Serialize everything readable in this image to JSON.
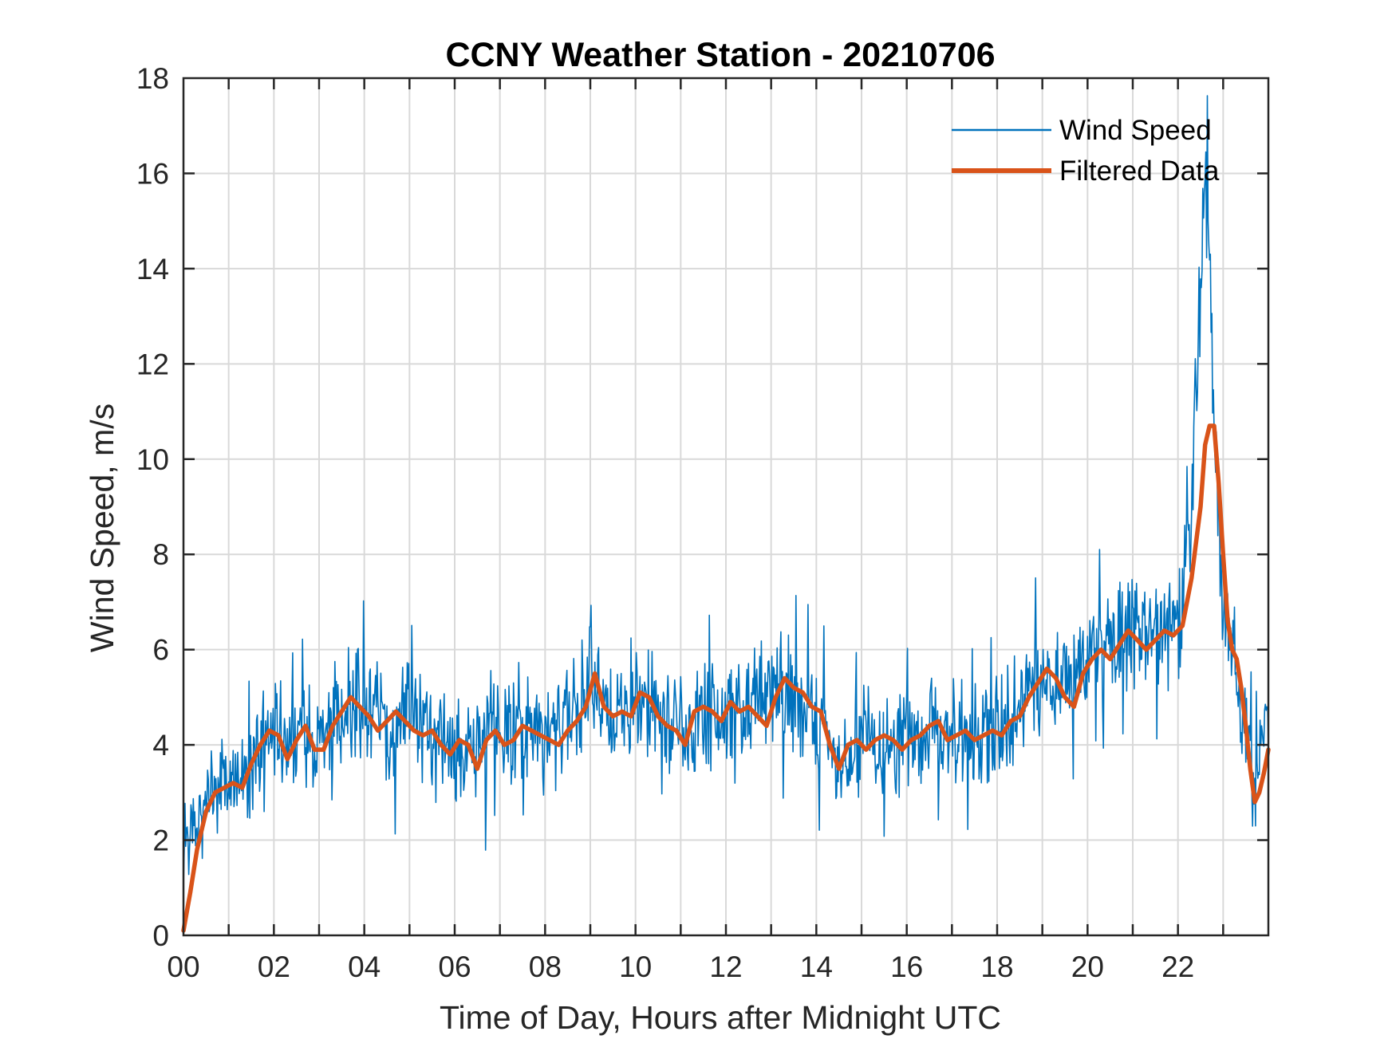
{
  "chart_data": {
    "type": "line",
    "title": "CCNY Weather Station - 20210706",
    "xlabel": "Time of Day, Hours after Midnight UTC",
    "ylabel": "Wind Speed, m/s",
    "xlim": [
      0,
      24
    ],
    "ylim": [
      0,
      18
    ],
    "x_ticks": [
      0,
      2,
      4,
      6,
      8,
      10,
      12,
      14,
      16,
      18,
      20,
      22
    ],
    "x_tick_labels": [
      "00",
      "02",
      "04",
      "06",
      "08",
      "10",
      "12",
      "14",
      "16",
      "18",
      "20",
      "22"
    ],
    "x_minor_grid_step": 1,
    "y_ticks": [
      0,
      2,
      4,
      6,
      8,
      10,
      12,
      14,
      16,
      18
    ],
    "y_tick_labels": [
      "0",
      "2",
      "4",
      "6",
      "8",
      "10",
      "12",
      "14",
      "16",
      "18"
    ],
    "grid": true,
    "legend_position": "top-right",
    "series": [
      {
        "name": "Wind Speed",
        "color": "#0072BD",
        "style": "thin",
        "description": "raw 1-minute wind speed, noisy",
        "x": [
          0,
          0.5,
          1,
          1.5,
          2,
          2.5,
          3,
          3.5,
          4,
          4.5,
          5,
          5.5,
          6,
          6.5,
          7,
          7.5,
          8,
          8.5,
          9,
          9.5,
          10,
          10.5,
          11,
          11.5,
          12,
          12.5,
          13,
          13.5,
          14,
          14.5,
          15,
          15.5,
          16,
          16.5,
          17,
          17.5,
          18,
          18.5,
          19,
          19.5,
          20,
          20.5,
          21,
          21.5,
          22,
          22.3,
          22.5,
          22.6,
          22.8,
          23,
          23.2,
          23.5,
          23.7,
          23.9,
          24
        ],
        "values": [
          1.9,
          3.0,
          3.2,
          3.5,
          4.3,
          4.0,
          4.3,
          4.8,
          4.9,
          4.4,
          4.6,
          4.3,
          3.9,
          4.0,
          4.2,
          4.4,
          4.2,
          4.6,
          5.5,
          4.7,
          5.1,
          4.7,
          4.3,
          4.7,
          4.8,
          4.7,
          5.3,
          5.0,
          4.6,
          3.7,
          4.0,
          4.1,
          4.1,
          4.3,
          4.3,
          4.2,
          4.4,
          4.8,
          5.5,
          5.2,
          5.9,
          6.1,
          6.3,
          6.3,
          6.4,
          8.5,
          13.5,
          16.0,
          11.0,
          7.0,
          6.0,
          4.5,
          3.0,
          4.3,
          4.9
        ]
      },
      {
        "name": "Filtered Data",
        "color": "#D95319",
        "style": "thick",
        "x": [
          0,
          0.15,
          0.3,
          0.5,
          0.7,
          0.9,
          1.1,
          1.3,
          1.5,
          1.7,
          1.9,
          2.1,
          2.3,
          2.5,
          2.7,
          2.9,
          3.1,
          3.3,
          3.5,
          3.7,
          3.9,
          4.1,
          4.3,
          4.5,
          4.7,
          4.9,
          5.1,
          5.3,
          5.5,
          5.7,
          5.9,
          6.1,
          6.3,
          6.5,
          6.7,
          6.9,
          7.1,
          7.3,
          7.5,
          7.7,
          7.9,
          8.1,
          8.3,
          8.5,
          8.7,
          8.9,
          9.1,
          9.3,
          9.5,
          9.7,
          9.9,
          10.1,
          10.3,
          10.5,
          10.7,
          10.9,
          11.1,
          11.3,
          11.5,
          11.7,
          11.9,
          12.1,
          12.3,
          12.5,
          12.7,
          12.9,
          13.1,
          13.3,
          13.5,
          13.7,
          13.9,
          14.1,
          14.3,
          14.5,
          14.7,
          14.9,
          15.1,
          15.3,
          15.5,
          15.7,
          15.9,
          16.1,
          16.3,
          16.5,
          16.7,
          16.9,
          17.1,
          17.3,
          17.5,
          17.7,
          17.9,
          18.1,
          18.3,
          18.5,
          18.7,
          18.9,
          19.1,
          19.3,
          19.5,
          19.7,
          19.9,
          20.1,
          20.3,
          20.5,
          20.7,
          20.9,
          21.1,
          21.3,
          21.5,
          21.7,
          21.9,
          22.1,
          22.3,
          22.5,
          22.6,
          22.7,
          22.8,
          22.9,
          23.0,
          23.1,
          23.2,
          23.3,
          23.4,
          23.5,
          23.6,
          23.7,
          23.8,
          23.9,
          24.0
        ],
        "values": [
          0.1,
          0.9,
          1.8,
          2.6,
          3.0,
          3.1,
          3.2,
          3.1,
          3.6,
          4.0,
          4.3,
          4.2,
          3.7,
          4.1,
          4.4,
          3.9,
          3.9,
          4.4,
          4.7,
          5.0,
          4.8,
          4.6,
          4.3,
          4.5,
          4.7,
          4.5,
          4.3,
          4.2,
          4.3,
          4.0,
          3.8,
          4.1,
          4.0,
          3.5,
          4.1,
          4.3,
          4.0,
          4.1,
          4.4,
          4.3,
          4.2,
          4.1,
          4.0,
          4.3,
          4.5,
          4.8,
          5.5,
          4.8,
          4.6,
          4.7,
          4.6,
          5.1,
          5.0,
          4.6,
          4.4,
          4.3,
          4.0,
          4.7,
          4.8,
          4.7,
          4.5,
          4.9,
          4.7,
          4.8,
          4.6,
          4.4,
          5.0,
          5.4,
          5.2,
          5.1,
          4.8,
          4.7,
          4.0,
          3.5,
          4.0,
          4.1,
          3.9,
          4.1,
          4.2,
          4.1,
          3.9,
          4.1,
          4.2,
          4.4,
          4.5,
          4.1,
          4.2,
          4.3,
          4.1,
          4.2,
          4.3,
          4.2,
          4.5,
          4.6,
          5.0,
          5.3,
          5.6,
          5.4,
          5.0,
          4.8,
          5.5,
          5.8,
          6.0,
          5.8,
          6.1,
          6.4,
          6.2,
          6.0,
          6.2,
          6.4,
          6.3,
          6.5,
          7.5,
          9.0,
          10.3,
          10.7,
          10.7,
          9.5,
          8.0,
          6.6,
          6.0,
          5.8,
          5.2,
          4.4,
          3.5,
          2.8,
          3.0,
          3.4,
          3.9
        ]
      }
    ]
  }
}
